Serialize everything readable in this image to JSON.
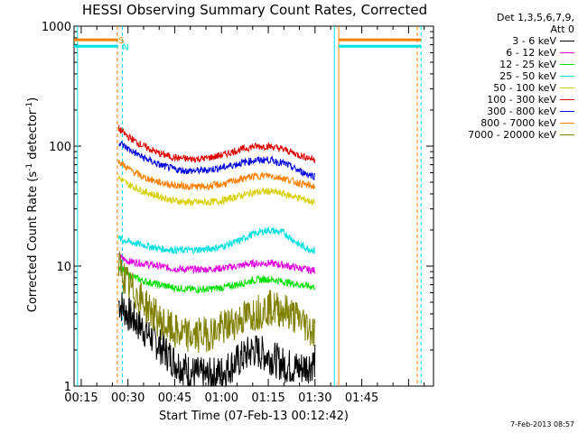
{
  "chart_data": {
    "type": "line",
    "title": "HESSI Observing Summary Count Rates, Corrected",
    "xlabel": "Start Time (07-Feb-13 00:12:42)",
    "ylabel_main": "Corrected Count Rate (s",
    "ylabel_sup1": "-1",
    "ylabel_mid": " detector",
    "ylabel_sup2": "-1",
    "ylabel_end": ")",
    "xlim_minutes": [
      12.7,
      128.0
    ],
    "x_ticks": [
      {
        "label": "00:15",
        "minute": 15
      },
      {
        "label": "00:30",
        "minute": 30
      },
      {
        "label": "00:45",
        "minute": 45
      },
      {
        "label": "01:00",
        "minute": 60
      },
      {
        "label": "01:15",
        "minute": 75
      },
      {
        "label": "01:30",
        "minute": 90
      },
      {
        "label": "01:45",
        "minute": 105
      }
    ],
    "y_scale": "log",
    "ylim": [
      1,
      1000
    ],
    "y_ticks": [
      {
        "label": "1",
        "value": 1
      },
      {
        "label": "10",
        "value": 10
      },
      {
        "label": "100",
        "value": 100
      },
      {
        "label": "1000",
        "value": 1000
      }
    ],
    "legend_header": [
      "Det 1,3,5,6,7,9,",
      "Att 0"
    ],
    "series": [
      {
        "name": "3 - 6 keV",
        "color": "#000000",
        "x": [
          27,
          30,
          35,
          40,
          45,
          50,
          55,
          60,
          65,
          70,
          75,
          80,
          85,
          88,
          90
        ],
        "y": [
          5,
          4,
          3,
          2.2,
          1.6,
          1.3,
          1.2,
          1.3,
          1.6,
          2,
          1.8,
          1.5,
          1.4,
          1.5,
          1.6
        ]
      },
      {
        "name": "6 - 12 keV",
        "color": "#e000e0",
        "x": [
          27,
          30,
          35,
          40,
          45,
          50,
          55,
          60,
          65,
          70,
          75,
          80,
          85,
          88,
          90
        ],
        "y": [
          12,
          11,
          10.5,
          10,
          9.5,
          9.4,
          9.4,
          9.6,
          10,
          10.5,
          10.6,
          10.2,
          9.6,
          9.3,
          9.2
        ]
      },
      {
        "name": "12 - 25 keV",
        "color": "#00e000",
        "x": [
          27,
          30,
          35,
          40,
          45,
          50,
          55,
          60,
          65,
          70,
          75,
          80,
          85,
          88,
          90
        ],
        "y": [
          10,
          8.5,
          7.5,
          7,
          6.6,
          6.4,
          6.4,
          6.6,
          7,
          7.6,
          7.8,
          7.4,
          7,
          6.8,
          6.7
        ]
      },
      {
        "name": "25 - 50 keV",
        "color": "#00e0e0",
        "x": [
          27,
          30,
          35,
          40,
          45,
          50,
          55,
          60,
          65,
          70,
          75,
          80,
          85,
          88,
          90
        ],
        "y": [
          17,
          16,
          15,
          14,
          13.6,
          13.6,
          13.8,
          14.5,
          16,
          18.5,
          20,
          19,
          15,
          14,
          13.5
        ]
      },
      {
        "name": "50 - 100 keV",
        "color": "#d8d000",
        "x": [
          27,
          30,
          35,
          40,
          45,
          50,
          55,
          60,
          65,
          70,
          75,
          80,
          85,
          88,
          90
        ],
        "y": [
          55,
          48,
          42,
          38,
          35,
          34,
          34,
          35,
          38,
          41,
          42,
          40,
          37,
          35,
          34
        ]
      },
      {
        "name": "100 - 300 keV",
        "color": "#e00000",
        "x": [
          27,
          30,
          35,
          40,
          45,
          50,
          55,
          60,
          65,
          70,
          75,
          80,
          85,
          88,
          90
        ],
        "y": [
          140,
          120,
          100,
          87,
          80,
          78,
          79,
          84,
          92,
          99,
          100,
          94,
          84,
          80,
          77
        ]
      },
      {
        "name": "300 - 800 keV",
        "color": "#0000e0",
        "x": [
          27,
          30,
          35,
          40,
          45,
          50,
          55,
          60,
          65,
          70,
          75,
          80,
          85,
          88,
          90
        ],
        "y": [
          108,
          95,
          80,
          70,
          64,
          62,
          63,
          66,
          71,
          76,
          77,
          72,
          62,
          58,
          56
        ]
      },
      {
        "name": "800 - 7000 keV",
        "color": "#ff8000",
        "x": [
          27,
          30,
          35,
          40,
          45,
          50,
          55,
          60,
          65,
          70,
          75,
          80,
          85,
          88,
          90
        ],
        "y": [
          75,
          65,
          55,
          50,
          47,
          46,
          46,
          48,
          52,
          56,
          57,
          54,
          49,
          47,
          46
        ]
      },
      {
        "name": "7000 - 20000 keV",
        "color": "#808000",
        "x": [
          27,
          30,
          35,
          40,
          45,
          50,
          55,
          60,
          65,
          70,
          75,
          80,
          85,
          88,
          90
        ],
        "y": [
          10,
          7,
          5,
          3.5,
          2.8,
          2.6,
          2.7,
          3,
          3.5,
          4,
          4.5,
          4.3,
          3.6,
          3.1,
          2.8
        ]
      }
    ],
    "saa_markers": [
      {
        "label": "S",
        "color": "#ff8000",
        "level": 770
      },
      {
        "label": "N",
        "color": "#00e0e0",
        "level": 680
      }
    ]
  },
  "footer": "7-Feb-2013 08:57"
}
